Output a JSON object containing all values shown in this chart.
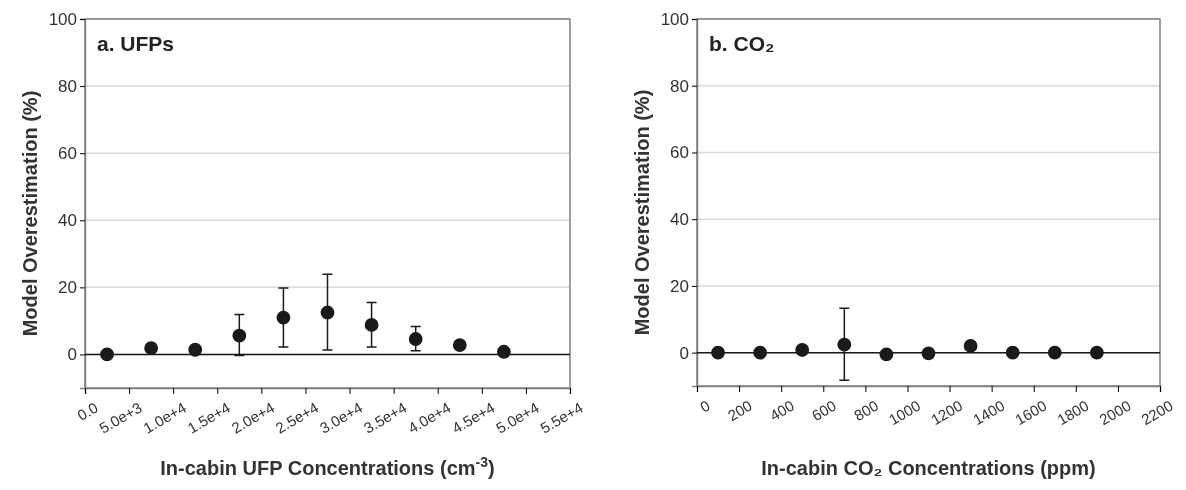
{
  "chart_data": [
    {
      "type": "scatter",
      "title": "a. UFPs",
      "xlabel": "In-cabin UFP Concentrations (cm$^{-3}$)",
      "ylabel": "Model Overestimation (%)",
      "x": [
        2500,
        7500,
        12500,
        17500,
        22500,
        27500,
        32500,
        37500,
        42500,
        47500
      ],
      "series": [
        {
          "color": "#1a1a1a",
          "values": [
            0,
            1.9,
            1.4,
            5.6,
            11.0,
            12.5,
            8.8,
            4.6,
            2.8,
            0.8
          ],
          "errors": [
            null,
            null,
            null,
            [
              -0.3,
              11.9
            ],
            [
              2.2,
              19.8
            ],
            [
              1.3,
              23.9
            ],
            [
              2.2,
              15.5
            ],
            [
              1.1,
              8.3
            ],
            null,
            null
          ]
        }
      ],
      "xlim": [
        0,
        55000
      ],
      "xticks": [
        {
          "value": 0,
          "label": "0.0"
        },
        {
          "value": 5000,
          "label": "5.0e+3"
        },
        {
          "value": 10000,
          "label": "1.0e+4"
        },
        {
          "value": 15000,
          "label": "1.5e+4"
        },
        {
          "value": 20000,
          "label": "2.0e+4"
        },
        {
          "value": 25000,
          "label": "2.5e+4"
        },
        {
          "value": 30000,
          "label": "3.0e+4"
        },
        {
          "value": 35000,
          "label": "3.5e+4"
        },
        {
          "value": 40000,
          "label": "4.0e+4"
        },
        {
          "value": 45000,
          "label": "4.5e+4"
        },
        {
          "value": 50000,
          "label": "5.0e+4"
        },
        {
          "value": 55000,
          "label": "5.5e+4"
        }
      ],
      "ylim": [
        -10,
        100
      ],
      "yticks": [
        0,
        20,
        40,
        60,
        80,
        100
      ],
      "grid": "y",
      "marker": "circle",
      "ref_lines": [
        {
          "axis": "y",
          "value": 0,
          "color": "#1a1a1a"
        }
      ]
    },
    {
      "type": "scatter",
      "title": "b. CO₂",
      "xlabel": "In-cabin CO₂ Concentrations (ppm)",
      "ylabel": "Model Overestimation (%)",
      "x": [
        100,
        300,
        500,
        700,
        900,
        1100,
        1300,
        1500,
        1700,
        1900
      ],
      "series": [
        {
          "color": "#1a1a1a",
          "values": [
            0,
            0,
            0.8,
            2.4,
            -0.5,
            -0.2,
            2.0,
            0,
            0,
            0
          ],
          "errors": [
            null,
            null,
            null,
            [
              -8.3,
              13.3
            ],
            null,
            null,
            null,
            null,
            null,
            null
          ]
        }
      ],
      "xlim": [
        0,
        2200
      ],
      "xticks": [
        0,
        200,
        400,
        600,
        800,
        1000,
        1200,
        1400,
        1600,
        1800,
        2000,
        2200
      ],
      "ylim": [
        -10,
        100
      ],
      "yticks": [
        0,
        20,
        40,
        60,
        80,
        100
      ],
      "grid": "y",
      "marker": "circle",
      "ref_lines": [
        {
          "axis": "y",
          "value": 0,
          "color": "#1a1a1a"
        }
      ]
    }
  ]
}
